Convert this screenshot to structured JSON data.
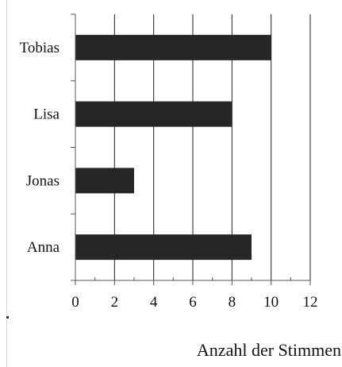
{
  "chart_data": {
    "type": "bar",
    "orientation": "horizontal",
    "categories": [
      "Anna",
      "Jonas",
      "Lisa",
      "Tobias"
    ],
    "values": [
      9,
      3,
      8,
      10
    ],
    "title": "",
    "xlabel": "Anzahl der Stimmen",
    "ylabel": "",
    "xlim": [
      0,
      12
    ],
    "xticks": [
      0,
      2,
      4,
      6,
      8,
      10,
      12
    ],
    "grid": "vertical",
    "legend": "none",
    "bar_color": "#262626"
  }
}
